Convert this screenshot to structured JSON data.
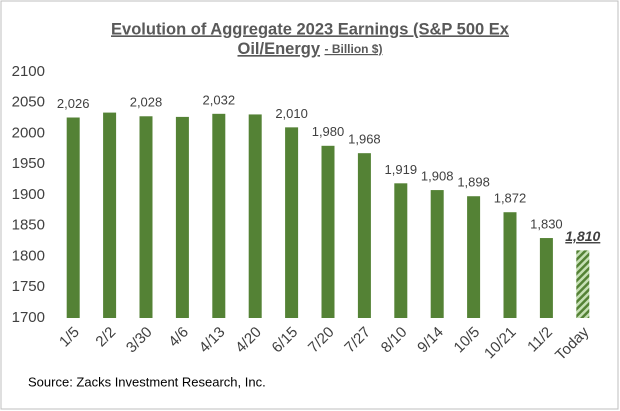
{
  "chart_data": {
    "type": "bar",
    "title": [
      "Evolution of Aggregate 2023 Earnings (S&P 500 Ex",
      "Oil/Energy"
    ],
    "subtitle": "- Billion $)",
    "source": "Source: Zacks Investment Research, Inc.",
    "categories": [
      "1/5",
      "2/2",
      "3/30",
      "4/6",
      "4/13",
      "4/20",
      "6/15",
      "7/20",
      "7/27",
      "8/10",
      "9/14",
      "10/5",
      "10/21",
      "11/2",
      "Today"
    ],
    "values": [
      2026,
      2034,
      2028,
      2027,
      2032,
      2031,
      2010,
      1980,
      1968,
      1919,
      1908,
      1898,
      1872,
      1830,
      1810
    ],
    "value_labels": [
      "2,026",
      null,
      "2,028",
      null,
      "2,032",
      null,
      "2,010",
      "1,980",
      "1,968",
      "1,919",
      "1,908",
      "1,898",
      "1,872",
      "1,830",
      "1,810"
    ],
    "color": "#548235",
    "hatched_last": true,
    "ylim": [
      1700,
      2100
    ],
    "yticks": [
      1700,
      1750,
      1800,
      1850,
      1900,
      1950,
      2000,
      2050,
      2100
    ],
    "grid": false
  }
}
